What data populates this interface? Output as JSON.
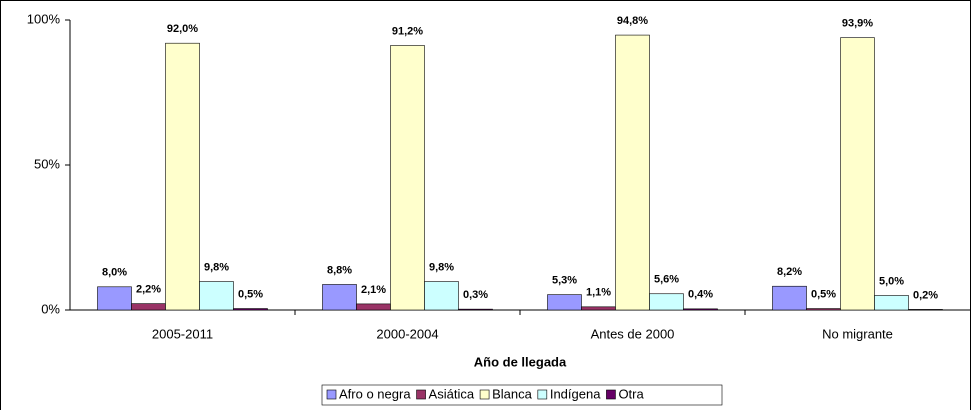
{
  "chart_data": {
    "type": "bar",
    "x_label": "Año de llegada",
    "categories": [
      "2005-2011",
      "2000-2004",
      "Antes de 2000",
      "No migrante"
    ],
    "series": [
      {
        "name": "Afro o negra",
        "color": "#9999ff",
        "values": [
          8.0,
          8.8,
          5.3,
          8.2
        ],
        "value_labels": [
          "8,0%",
          "8,8%",
          "5,3%",
          "8,2%"
        ]
      },
      {
        "name": "Asiática",
        "color": "#993366",
        "values": [
          2.2,
          2.1,
          1.1,
          0.5
        ],
        "value_labels": [
          "2,2%",
          "2,1%",
          "1,1%",
          "0,5%"
        ]
      },
      {
        "name": "Blanca",
        "color": "#ffffcc",
        "values": [
          92.0,
          91.2,
          94.8,
          93.9
        ],
        "value_labels": [
          "92,0%",
          "91,2%",
          "94,8%",
          "93,9%"
        ]
      },
      {
        "name": "Indígena",
        "color": "#ccffff",
        "values": [
          9.8,
          9.8,
          5.6,
          5.0
        ],
        "value_labels": [
          "9,8%",
          "9,8%",
          "5,6%",
          "5,0%"
        ]
      },
      {
        "name": "Otra",
        "color": "#660066",
        "values": [
          0.5,
          0.3,
          0.4,
          0.2
        ],
        "value_labels": [
          "0,5%",
          "0,3%",
          "0,4%",
          "0,2%"
        ]
      }
    ],
    "ylim": [
      0,
      100
    ],
    "yticks": [
      {
        "value": 0,
        "label": "0%"
      },
      {
        "value": 50,
        "label": "50%"
      },
      {
        "value": 100,
        "label": "100%"
      }
    ],
    "legend": "bottom"
  }
}
